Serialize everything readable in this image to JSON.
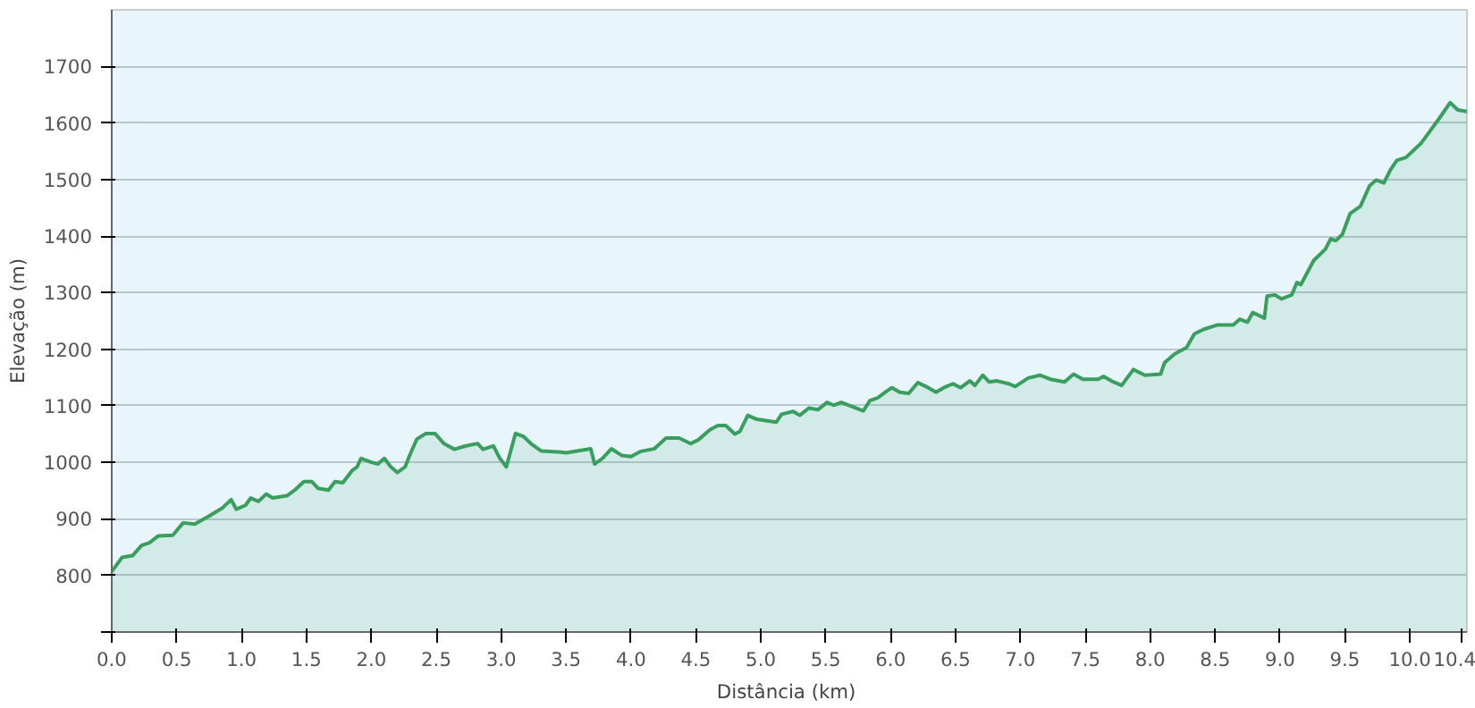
{
  "chart_data": {
    "type": "area",
    "xlabel": "Distância  (km)",
    "ylabel": "Elevação (m)",
    "xlim": [
      0,
      10.44
    ],
    "ylim": [
      700,
      1800
    ],
    "xticks": [
      {
        "value": 0,
        "label": "0.0"
      },
      {
        "value": 0.5,
        "label": "0.5"
      },
      {
        "value": 1,
        "label": "1.0"
      },
      {
        "value": 1.5,
        "label": "1.5"
      },
      {
        "value": 2,
        "label": "2.0"
      },
      {
        "value": 2.5,
        "label": "2.5"
      },
      {
        "value": 3,
        "label": "3.0"
      },
      {
        "value": 3.5,
        "label": "3.5"
      },
      {
        "value": 4,
        "label": "4.0"
      },
      {
        "value": 4.5,
        "label": "4.5"
      },
      {
        "value": 5,
        "label": "5.0"
      },
      {
        "value": 5.5,
        "label": "5.5"
      },
      {
        "value": 6,
        "label": "6.0"
      },
      {
        "value": 6.5,
        "label": "6.5"
      },
      {
        "value": 7,
        "label": "7.0"
      },
      {
        "value": 7.5,
        "label": "7.5"
      },
      {
        "value": 8,
        "label": "8.0"
      },
      {
        "value": 8.5,
        "label": "8.5"
      },
      {
        "value": 9,
        "label": "9.0"
      },
      {
        "value": 9.5,
        "label": "9.5"
      },
      {
        "value": 10,
        "label": "10.0"
      },
      {
        "value": 10.4,
        "label": "10.4"
      }
    ],
    "yticks": [
      {
        "value": 700,
        "label": null
      },
      800,
      900,
      1000,
      1100,
      1200,
      1300,
      1400,
      1500,
      1600,
      1700
    ],
    "grid": "y",
    "series": [
      {
        "color": "#3a9e5f",
        "x": [
          0.0,
          0.08,
          0.16,
          0.23,
          0.29,
          0.36,
          0.47,
          0.55,
          0.64,
          0.75,
          0.85,
          0.92,
          0.96,
          1.03,
          1.07,
          1.13,
          1.19,
          1.24,
          1.35,
          1.41,
          1.48,
          1.54,
          1.59,
          1.67,
          1.72,
          1.78,
          1.85,
          1.89,
          1.92,
          2.0,
          2.05,
          2.1,
          2.15,
          2.2,
          2.26,
          2.3,
          2.35,
          2.42,
          2.49,
          2.56,
          2.64,
          2.71,
          2.77,
          2.82,
          2.86,
          2.94,
          2.99,
          3.04,
          3.11,
          3.17,
          3.23,
          3.31,
          3.46,
          3.5,
          3.69,
          3.72,
          3.78,
          3.85,
          3.93,
          4.0,
          4.07,
          4.18,
          4.27,
          4.37,
          4.46,
          4.52,
          4.61,
          4.67,
          4.73,
          4.8,
          4.84,
          4.9,
          4.97,
          5.12,
          5.16,
          5.25,
          5.3,
          5.37,
          5.44,
          5.51,
          5.56,
          5.62,
          5.79,
          5.84,
          5.9,
          5.96,
          6.01,
          6.07,
          6.14,
          6.21,
          6.29,
          6.35,
          6.41,
          6.48,
          6.54,
          6.61,
          6.65,
          6.71,
          6.76,
          6.82,
          6.91,
          6.96,
          7.06,
          7.15,
          7.23,
          7.34,
          7.41,
          7.48,
          7.6,
          7.64,
          7.7,
          7.78,
          7.87,
          7.96,
          8.08,
          8.11,
          8.19,
          8.28,
          8.34,
          8.41,
          8.52,
          8.64,
          8.69,
          8.75,
          8.79,
          8.88,
          8.9,
          8.96,
          9.01,
          9.09,
          9.13,
          9.16,
          9.26,
          9.35,
          9.39,
          9.43,
          9.48,
          9.54,
          9.62,
          9.69,
          9.74,
          9.8,
          9.85,
          9.9,
          9.97,
          10.09,
          10.22,
          10.31,
          10.37,
          10.44
        ],
        "values": [
          807,
          832,
          835,
          853,
          858,
          870,
          871,
          893,
          891,
          905,
          919,
          934,
          917,
          924,
          937,
          931,
          944,
          937,
          941,
          951,
          966,
          966,
          954,
          951,
          966,
          964,
          985,
          992,
          1007,
          1000,
          997,
          1007,
          992,
          982,
          992,
          1015,
          1041,
          1051,
          1051,
          1033,
          1023,
          1028,
          1031,
          1033,
          1023,
          1029,
          1007,
          992,
          1051,
          1046,
          1033,
          1020,
          1018,
          1017,
          1024,
          997,
          1007,
          1024,
          1012,
          1010,
          1019,
          1024,
          1043,
          1043,
          1033,
          1040,
          1058,
          1065,
          1065,
          1050,
          1055,
          1083,
          1076,
          1071,
          1085,
          1090,
          1083,
          1096,
          1093,
          1106,
          1101,
          1106,
          1091,
          1109,
          1114,
          1124,
          1132,
          1124,
          1122,
          1141,
          1132,
          1124,
          1132,
          1139,
          1132,
          1144,
          1136,
          1154,
          1142,
          1144,
          1139,
          1134,
          1149,
          1154,
          1147,
          1142,
          1156,
          1147,
          1147,
          1152,
          1144,
          1136,
          1164,
          1154,
          1156,
          1176,
          1192,
          1203,
          1227,
          1235,
          1243,
          1243,
          1253,
          1248,
          1265,
          1255,
          1294,
          1296,
          1289,
          1296,
          1318,
          1314,
          1357,
          1377,
          1395,
          1392,
          1403,
          1440,
          1453,
          1489,
          1499,
          1494,
          1517,
          1534,
          1539,
          1565,
          1606,
          1636,
          1623,
          1620
        ]
      }
    ]
  }
}
